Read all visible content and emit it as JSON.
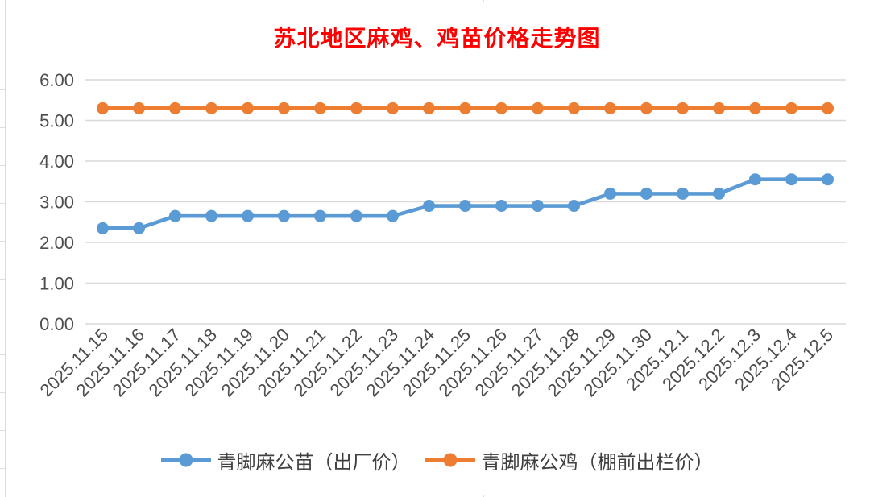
{
  "chart_data": {
    "type": "line",
    "title": "苏北地区麻鸡、鸡苗价格走势图",
    "title_color": "#FF0000",
    "categories": [
      "2025.11.15",
      "2025.11.16",
      "2025.11.17",
      "2025.11.18",
      "2025.11.19",
      "2025.11.20",
      "2025.11.21",
      "2025.11.22",
      "2025.11.23",
      "2025.11.24",
      "2025.11.25",
      "2025.11.26",
      "2025.11.27",
      "2025.11.28",
      "2025.11.29",
      "2025.11.30",
      "2025.12.1",
      "2025.12.2",
      "2025.12.3",
      "2025.12.4",
      "2025.12.5"
    ],
    "series": [
      {
        "name": "青脚麻公苗（出厂价）",
        "color": "#5B9BD5",
        "values": [
          2.35,
          2.35,
          2.65,
          2.65,
          2.65,
          2.65,
          2.65,
          2.65,
          2.65,
          2.9,
          2.9,
          2.9,
          2.9,
          2.9,
          3.2,
          3.2,
          3.2,
          3.2,
          3.55,
          3.55,
          3.55
        ]
      },
      {
        "name": "青脚麻公鸡（棚前出栏价）",
        "color": "#ED7D31",
        "values": [
          5.3,
          5.3,
          5.3,
          5.3,
          5.3,
          5.3,
          5.3,
          5.3,
          5.3,
          5.3,
          5.3,
          5.3,
          5.3,
          5.3,
          5.3,
          5.3,
          5.3,
          5.3,
          5.3,
          5.3,
          5.3
        ]
      }
    ],
    "xlabel": "",
    "ylabel": "",
    "ylim": [
      0,
      6
    ],
    "y_ticks": [
      "0.00",
      "1.00",
      "2.00",
      "3.00",
      "4.00",
      "5.00",
      "6.00"
    ],
    "grid": true,
    "gridline_color": "#D9D9D9",
    "axis_label_color": "#4D4D4D",
    "legend_position": "bottom"
  }
}
